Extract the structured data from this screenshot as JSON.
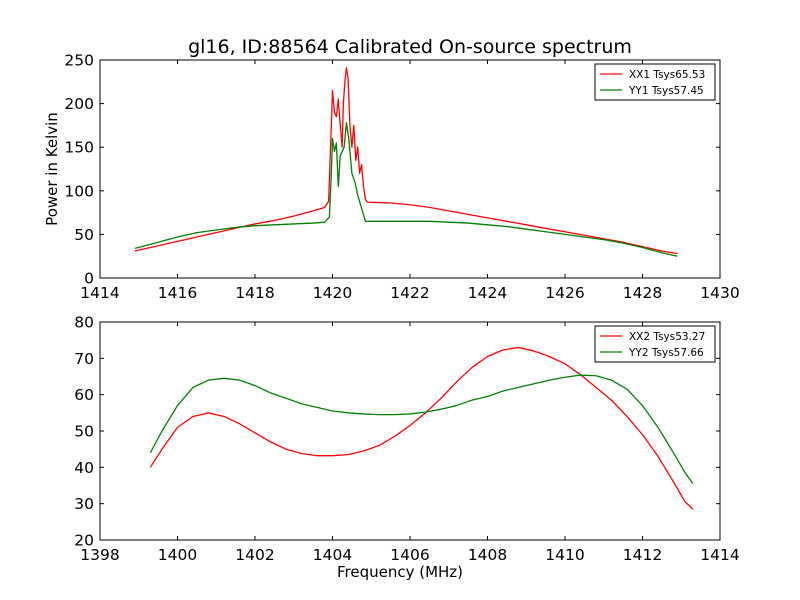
{
  "figure": {
    "title": "gl16, ID:88564 Calibrated On-source spectrum"
  },
  "colors": {
    "series_1": "#ff0000",
    "series_2": "#008000",
    "background": "#ffffff",
    "axes": "#000000"
  },
  "chart_data": [
    {
      "type": "line",
      "title": "gl16, ID:88564 Calibrated On-source spectrum",
      "xlabel": "",
      "ylabel": "Power in Kelvin",
      "xlim": [
        1414,
        1430
      ],
      "ylim": [
        0,
        250
      ],
      "xticks": [
        1414,
        1416,
        1418,
        1420,
        1422,
        1424,
        1426,
        1428,
        1430
      ],
      "yticks": [
        0,
        50,
        100,
        150,
        200,
        250
      ],
      "grid": false,
      "legend": "top-right",
      "series": [
        {
          "name": "XX1 Tsys65.53",
          "color": "#ff0000",
          "points": [
            [
              1414.9,
              31
            ],
            [
              1415.5,
              37
            ],
            [
              1416,
              42
            ],
            [
              1416.5,
              47
            ],
            [
              1417,
              52
            ],
            [
              1417.5,
              57
            ],
            [
              1418,
              62
            ],
            [
              1418.5,
              66
            ],
            [
              1419,
              71
            ],
            [
              1419.5,
              77
            ],
            [
              1419.8,
              81
            ],
            [
              1419.9,
              88
            ],
            [
              1419.95,
              150
            ],
            [
              1420.0,
              215
            ],
            [
              1420.05,
              190
            ],
            [
              1420.1,
              185
            ],
            [
              1420.15,
              205
            ],
            [
              1420.2,
              175
            ],
            [
              1420.25,
              150
            ],
            [
              1420.28,
              200
            ],
            [
              1420.32,
              225
            ],
            [
              1420.36,
              241
            ],
            [
              1420.4,
              230
            ],
            [
              1420.45,
              175
            ],
            [
              1420.5,
              150
            ],
            [
              1420.55,
              175
            ],
            [
              1420.6,
              135
            ],
            [
              1420.65,
              150
            ],
            [
              1420.7,
              120
            ],
            [
              1420.75,
              130
            ],
            [
              1420.8,
              105
            ],
            [
              1420.85,
              90
            ],
            [
              1420.9,
              87
            ],
            [
              1421.5,
              86
            ],
            [
              1422,
              84
            ],
            [
              1422.5,
              81
            ],
            [
              1423,
              77
            ],
            [
              1423.5,
              73
            ],
            [
              1424,
              69
            ],
            [
              1424.5,
              65
            ],
            [
              1425,
              61
            ],
            [
              1425.5,
              57
            ],
            [
              1426,
              53
            ],
            [
              1426.5,
              49
            ],
            [
              1427,
              45
            ],
            [
              1427.5,
              41
            ],
            [
              1428,
              36
            ],
            [
              1428.5,
              31
            ],
            [
              1428.9,
              28
            ]
          ]
        },
        {
          "name": "YY1 Tsys57.45",
          "color": "#008000",
          "points": [
            [
              1414.9,
              34
            ],
            [
              1415.5,
              41
            ],
            [
              1416,
              47
            ],
            [
              1416.5,
              52
            ],
            [
              1417,
              55
            ],
            [
              1417.5,
              58
            ],
            [
              1418,
              60
            ],
            [
              1418.5,
              61
            ],
            [
              1419,
              62
            ],
            [
              1419.5,
              63
            ],
            [
              1419.8,
              64
            ],
            [
              1419.92,
              70
            ],
            [
              1419.97,
              120
            ],
            [
              1420.0,
              160
            ],
            [
              1420.05,
              145
            ],
            [
              1420.1,
              155
            ],
            [
              1420.15,
              105
            ],
            [
              1420.2,
              140
            ],
            [
              1420.25,
              145
            ],
            [
              1420.3,
              150
            ],
            [
              1420.36,
              178
            ],
            [
              1420.42,
              160
            ],
            [
              1420.5,
              120
            ],
            [
              1420.58,
              110
            ],
            [
              1420.65,
              95
            ],
            [
              1420.75,
              80
            ],
            [
              1420.85,
              65
            ],
            [
              1421.5,
              65
            ],
            [
              1422,
              65
            ],
            [
              1422.5,
              65
            ],
            [
              1423,
              64
            ],
            [
              1423.5,
              63
            ],
            [
              1424,
              61
            ],
            [
              1424.5,
              59
            ],
            [
              1425,
              56
            ],
            [
              1425.5,
              53
            ],
            [
              1426,
              50
            ],
            [
              1426.5,
              47
            ],
            [
              1427,
              44
            ],
            [
              1427.5,
              40
            ],
            [
              1428,
              35
            ],
            [
              1428.5,
              29
            ],
            [
              1428.9,
              25
            ]
          ]
        }
      ]
    },
    {
      "type": "line",
      "title": "",
      "xlabel": "Frequency (MHz)",
      "ylabel": "",
      "xlim": [
        1398,
        1414
      ],
      "ylim": [
        20,
        80
      ],
      "xticks": [
        1398,
        1400,
        1402,
        1404,
        1406,
        1408,
        1410,
        1412,
        1414
      ],
      "yticks": [
        20,
        30,
        40,
        50,
        60,
        70,
        80
      ],
      "grid": false,
      "legend": "top-right",
      "series": [
        {
          "name": "XX2 Tsys53.27",
          "color": "#ff0000",
          "points": [
            [
              1399.3,
              40
            ],
            [
              1399.6,
              45
            ],
            [
              1400,
              51
            ],
            [
              1400.4,
              54
            ],
            [
              1400.8,
              55
            ],
            [
              1401.2,
              54
            ],
            [
              1401.6,
              52
            ],
            [
              1402,
              49.5
            ],
            [
              1402.4,
              47
            ],
            [
              1402.8,
              45
            ],
            [
              1403.2,
              43.8
            ],
            [
              1403.6,
              43.2
            ],
            [
              1404,
              43.2
            ],
            [
              1404.4,
              43.5
            ],
            [
              1404.8,
              44.5
            ],
            [
              1405.2,
              46
            ],
            [
              1405.6,
              48.5
            ],
            [
              1406,
              51.5
            ],
            [
              1406.4,
              55
            ],
            [
              1406.8,
              59
            ],
            [
              1407.2,
              63.5
            ],
            [
              1407.6,
              67.5
            ],
            [
              1408,
              70.5
            ],
            [
              1408.4,
              72.3
            ],
            [
              1408.8,
              73
            ],
            [
              1409.2,
              72
            ],
            [
              1409.6,
              70.5
            ],
            [
              1410,
              68.5
            ],
            [
              1410.4,
              65.5
            ],
            [
              1410.8,
              62
            ],
            [
              1411.2,
              58.5
            ],
            [
              1411.6,
              54
            ],
            [
              1412,
              49
            ],
            [
              1412.4,
              43
            ],
            [
              1412.8,
              36
            ],
            [
              1413.1,
              30.5
            ],
            [
              1413.3,
              28.5
            ]
          ]
        },
        {
          "name": "YY2 Tsys57.66",
          "color": "#008000",
          "points": [
            [
              1399.3,
              44
            ],
            [
              1399.6,
              50
            ],
            [
              1400,
              57
            ],
            [
              1400.4,
              62
            ],
            [
              1400.8,
              64
            ],
            [
              1401.2,
              64.5
            ],
            [
              1401.6,
              64
            ],
            [
              1402,
              62.5
            ],
            [
              1402.4,
              60.5
            ],
            [
              1402.8,
              59
            ],
            [
              1403.2,
              57.5
            ],
            [
              1403.6,
              56.5
            ],
            [
              1404,
              55.5
            ],
            [
              1404.4,
              55
            ],
            [
              1404.8,
              54.7
            ],
            [
              1405.2,
              54.5
            ],
            [
              1405.6,
              54.5
            ],
            [
              1406,
              54.7
            ],
            [
              1406.4,
              55.2
            ],
            [
              1406.8,
              56
            ],
            [
              1407.2,
              57
            ],
            [
              1407.6,
              58.5
            ],
            [
              1408,
              59.5
            ],
            [
              1408.4,
              61
            ],
            [
              1408.8,
              62
            ],
            [
              1409.2,
              63
            ],
            [
              1409.6,
              64
            ],
            [
              1410,
              64.8
            ],
            [
              1410.4,
              65.4
            ],
            [
              1410.8,
              65.2
            ],
            [
              1411.2,
              64
            ],
            [
              1411.6,
              61.5
            ],
            [
              1412,
              57
            ],
            [
              1412.4,
              51
            ],
            [
              1412.8,
              44
            ],
            [
              1413.1,
              38.5
            ],
            [
              1413.3,
              35.5
            ]
          ]
        }
      ]
    }
  ]
}
